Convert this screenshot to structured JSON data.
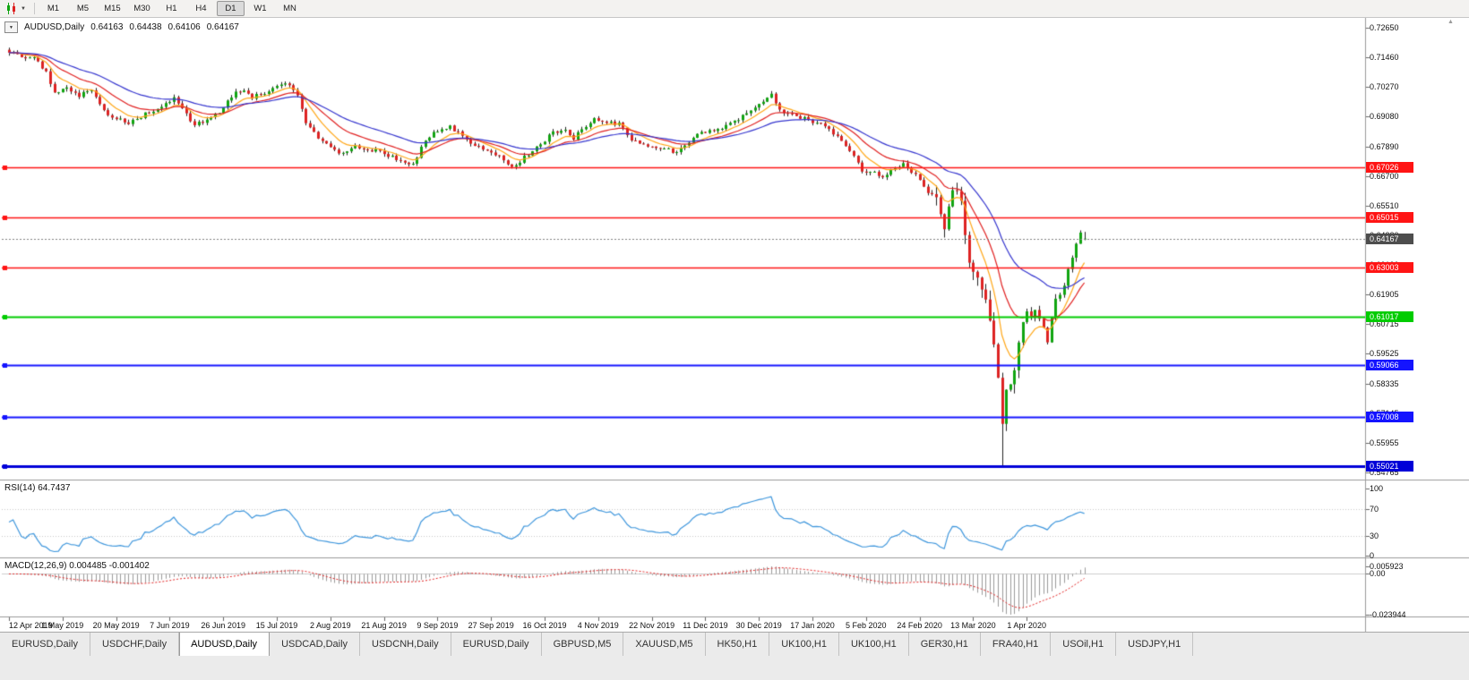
{
  "toolbar": {
    "timeframes": [
      "M1",
      "M5",
      "M15",
      "M30",
      "H1",
      "H4",
      "D1",
      "W1",
      "MN"
    ],
    "active_timeframe": "D1"
  },
  "icons": {
    "dropdown_glyph": "▼",
    "scroll_up_glyph": "▲"
  },
  "chart": {
    "info_line": {
      "symbol_label": "AUDUSD,Daily",
      "open": "0.64163",
      "high": "0.64438",
      "low": "0.64106",
      "close": "0.64167"
    },
    "price_axis": {
      "labels": [
        "0.72650",
        "0.71460",
        "0.70270",
        "0.69080",
        "0.67890",
        "0.66700",
        "0.65510",
        "0.64320",
        "0.63130",
        "0.61905",
        "0.60715",
        "0.59525",
        "0.58335",
        "0.57145",
        "0.55955",
        "0.54765"
      ],
      "top_price": 0.7265,
      "bottom_price": 0.54765
    },
    "current_price": {
      "label": "0.64167",
      "price": 0.64167,
      "badge_color": "#4d4d4d"
    },
    "hlines": [
      {
        "label": "0.67026",
        "price": 0.67026,
        "color": "#ff1414",
        "width": 1.5
      },
      {
        "label": "0.65015",
        "price": 0.65015,
        "color": "#ff1414",
        "width": 1.5
      },
      {
        "label": "0.63003",
        "price": 0.63003,
        "color": "#ff1414",
        "width": 1.5
      },
      {
        "label": "0.61017",
        "price": 0.61017,
        "color": "#00cc00",
        "width": 2
      },
      {
        "label": "0.59066",
        "price": 0.59066,
        "color": "#1414ff",
        "width": 2
      },
      {
        "label": "0.57008",
        "price": 0.57008,
        "color": "#1414ff",
        "width": 2
      },
      {
        "label": "0.55021",
        "price": 0.55021,
        "color": "#0000d8",
        "width": 3
      }
    ],
    "date_axis": [
      "12 Apr 2019",
      "1 May 2019",
      "20 May 2019",
      "7 Jun 2019",
      "26 Jun 2019",
      "15 Jul 2019",
      "2 Aug 2019",
      "21 Aug 2019",
      "9 Sep 2019",
      "27 Sep 2019",
      "16 Oct 2019",
      "4 Nov 2019",
      "22 Nov 2019",
      "11 Dec 2019",
      "30 Dec 2019",
      "17 Jan 2020",
      "5 Feb 2020",
      "24 Feb 2020",
      "13 Mar 2020",
      "1 Apr 2020"
    ]
  },
  "rsi_panel": {
    "label": "RSI(14) 64.7437",
    "value": 64.7437,
    "levels": [
      "100",
      "70",
      "30",
      "0"
    ],
    "line_color": "#3e96dc"
  },
  "macd_panel": {
    "label": "MACD(12,26,9) 0.004485 -0.001402",
    "macd_value": 0.004485,
    "signal_value": -0.001402,
    "axis": [
      "0.005923",
      "0.00",
      "-0.023944"
    ],
    "histogram_color": "#9a9a9a",
    "signal_color": "#e02020"
  },
  "tabs": {
    "items": [
      "EURUSD,Daily",
      "USDCHF,Daily",
      "AUDUSD,Daily",
      "USDCAD,Daily",
      "USDCNH,Daily",
      "EURUSD,Daily",
      "GBPUSD,M5",
      "XAUUSD,M5",
      "HK50,H1",
      "UK100,H1",
      "UK100,H1",
      "GER30,H1",
      "FRA40,H1",
      "USOil,H1",
      "USDJPY,H1"
    ],
    "active_index": 2
  },
  "chart_data": {
    "type": "candlestick",
    "symbol": "AUDUSD",
    "timeframe": "Daily",
    "title": "AUDUSD,Daily",
    "x_range": [
      "12 Apr 2019",
      "15 Apr 2020"
    ],
    "y_range": [
      0.54549,
      0.73046
    ],
    "num_candles": 262,
    "ohlc_current": {
      "open": 0.64163,
      "high": 0.64438,
      "low": 0.64106,
      "close": 0.64167
    },
    "crash_low": 0.5502,
    "close_keyframes": [
      [
        0,
        0.7168
      ],
      [
        3,
        0.715
      ],
      [
        6,
        0.714
      ],
      [
        9,
        0.7085
      ],
      [
        11,
        0.701
      ],
      [
        14,
        0.7022
      ],
      [
        17,
        0.6995
      ],
      [
        20,
        0.7005
      ],
      [
        23,
        0.693
      ],
      [
        26,
        0.69
      ],
      [
        29,
        0.688
      ],
      [
        32,
        0.691
      ],
      [
        35,
        0.693
      ],
      [
        38,
        0.696
      ],
      [
        40,
        0.6985
      ],
      [
        43,
        0.692
      ],
      [
        45,
        0.687
      ],
      [
        48,
        0.6895
      ],
      [
        51,
        0.693
      ],
      [
        54,
        0.699
      ],
      [
        56,
        0.7015
      ],
      [
        59,
        0.6985
      ],
      [
        62,
        0.7
      ],
      [
        65,
        0.703
      ],
      [
        67,
        0.7042
      ],
      [
        70,
        0.6995
      ],
      [
        72,
        0.689
      ],
      [
        74,
        0.6838
      ],
      [
        77,
        0.6805
      ],
      [
        79,
        0.6775
      ],
      [
        81,
        0.6757
      ],
      [
        84,
        0.6792
      ],
      [
        87,
        0.678
      ],
      [
        90,
        0.6765
      ],
      [
        93,
        0.6745
      ],
      [
        96,
        0.672
      ],
      [
        98,
        0.6715
      ],
      [
        101,
        0.681
      ],
      [
        104,
        0.6852
      ],
      [
        107,
        0.6868
      ],
      [
        110,
        0.6835
      ],
      [
        113,
        0.6792
      ],
      [
        116,
        0.677
      ],
      [
        119,
        0.6745
      ],
      [
        122,
        0.6702
      ],
      [
        125,
        0.6745
      ],
      [
        128,
        0.6782
      ],
      [
        131,
        0.6832
      ],
      [
        134,
        0.6858
      ],
      [
        137,
        0.6822
      ],
      [
        140,
        0.6865
      ],
      [
        142,
        0.6902
      ],
      [
        145,
        0.689
      ],
      [
        148,
        0.6875
      ],
      [
        151,
        0.6815
      ],
      [
        154,
        0.6795
      ],
      [
        157,
        0.6788
      ],
      [
        160,
        0.6772
      ],
      [
        162,
        0.6762
      ],
      [
        165,
        0.6808
      ],
      [
        168,
        0.6842
      ],
      [
        171,
        0.6855
      ],
      [
        174,
        0.6872
      ],
      [
        177,
        0.6898
      ],
      [
        180,
        0.6932
      ],
      [
        183,
        0.6975
      ],
      [
        185,
        0.7005
      ],
      [
        187,
        0.6932
      ],
      [
        190,
        0.6912
      ],
      [
        193,
        0.6898
      ],
      [
        196,
        0.6882
      ],
      [
        199,
        0.6858
      ],
      [
        202,
        0.6812
      ],
      [
        205,
        0.6742
      ],
      [
        207,
        0.6692
      ],
      [
        210,
        0.6682
      ],
      [
        212,
        0.6672
      ],
      [
        215,
        0.6698
      ],
      [
        217,
        0.6715
      ],
      [
        220,
        0.6672
      ],
      [
        222,
        0.6622
      ],
      [
        225,
        0.6572
      ],
      [
        227,
        0.647
      ],
      [
        229,
        0.6632
      ],
      [
        231,
        0.6585
      ],
      [
        233,
        0.632
      ],
      [
        235,
        0.6242
      ],
      [
        237,
        0.6182
      ],
      [
        239,
        0.5992
      ],
      [
        241,
        0.5682
      ],
      [
        242,
        0.5802
      ],
      [
        244,
        0.5885
      ],
      [
        246,
        0.6078
      ],
      [
        248,
        0.6132
      ],
      [
        250,
        0.6102
      ],
      [
        252,
        0.6002
      ],
      [
        254,
        0.6182
      ],
      [
        256,
        0.6225
      ],
      [
        258,
        0.6352
      ],
      [
        260,
        0.6438
      ],
      [
        261,
        0.64167
      ]
    ],
    "up_color": "#11a511",
    "down_color": "#dd2222",
    "wick_color": "#222222",
    "moving_averages": [
      {
        "type": "EMA",
        "period": 8,
        "color": "#ffa718"
      },
      {
        "type": "EMA",
        "period": 17,
        "color": "#e02020"
      },
      {
        "type": "EMA",
        "period": 34,
        "color": "#3535ce"
      }
    ],
    "indicators": {
      "rsi": {
        "period": 14,
        "current": 64.7437,
        "levels": [
          100,
          70,
          30,
          0
        ]
      },
      "macd": {
        "fast": 12,
        "slow": 26,
        "signal": 9,
        "current_macd": 0.004485,
        "current_signal": -0.001402,
        "panel_max": 0.005923,
        "panel_min": -0.023944
      }
    },
    "levels": [
      0.67026,
      0.65015,
      0.63003,
      0.61017,
      0.59066,
      0.57008,
      0.55021
    ]
  }
}
